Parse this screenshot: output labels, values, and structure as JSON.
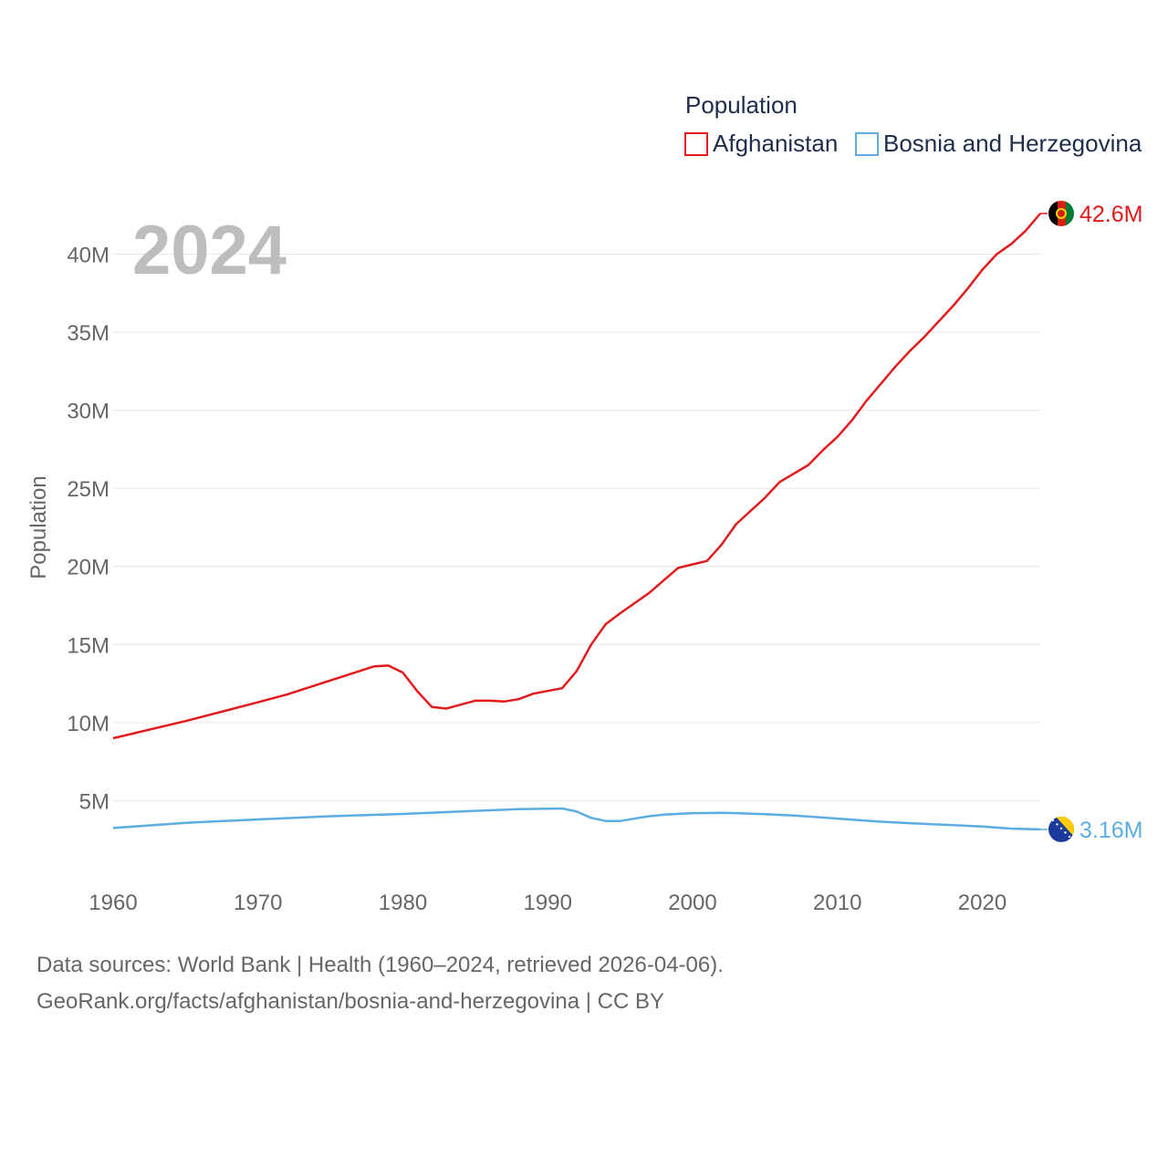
{
  "chart_data": {
    "type": "line",
    "title": "",
    "year_label": "2024",
    "legend_title": "Population",
    "ylabel": "Population",
    "xlabel": "",
    "ylim": [
      0,
      44000000
    ],
    "xlim": [
      1960,
      2024
    ],
    "grid": true,
    "yticks": [
      {
        "value": 5000000,
        "label": "5M"
      },
      {
        "value": 10000000,
        "label": "10M"
      },
      {
        "value": 15000000,
        "label": "15M"
      },
      {
        "value": 20000000,
        "label": "20M"
      },
      {
        "value": 25000000,
        "label": "25M"
      },
      {
        "value": 30000000,
        "label": "30M"
      },
      {
        "value": 35000000,
        "label": "35M"
      },
      {
        "value": 40000000,
        "label": "40M"
      }
    ],
    "xticks": [
      {
        "value": 1960,
        "label": "1960"
      },
      {
        "value": 1970,
        "label": "1970"
      },
      {
        "value": 1980,
        "label": "1980"
      },
      {
        "value": 1990,
        "label": "1990"
      },
      {
        "value": 2000,
        "label": "2000"
      },
      {
        "value": 2010,
        "label": "2010"
      },
      {
        "value": 2020,
        "label": "2020"
      }
    ],
    "series": [
      {
        "name": "Afghanistan",
        "color": "#e31a1c",
        "end_label": "42.6M",
        "flag": "afghanistan-flag-icon",
        "x": [
          1960,
          1965,
          1970,
          1972,
          1975,
          1978,
          1979,
          1980,
          1981,
          1982,
          1983,
          1985,
          1986,
          1987,
          1988,
          1989,
          1991,
          1992,
          1993,
          1994,
          1995,
          1997,
          1999,
          2001,
          2002,
          2003,
          2005,
          2006,
          2008,
          2009,
          2010,
          2011,
          2012,
          2013,
          2014,
          2015,
          2016,
          2017,
          2018,
          2019,
          2020,
          2021,
          2022,
          2023,
          2024
        ],
        "values": [
          9000000,
          10100000,
          11300000,
          11800000,
          12700000,
          13600000,
          13650000,
          13200000,
          12000000,
          11000000,
          10900000,
          11400000,
          11400000,
          11350000,
          11500000,
          11850000,
          12200000,
          13300000,
          15000000,
          16300000,
          17000000,
          18300000,
          19900000,
          20350000,
          21400000,
          22700000,
          24400000,
          25400000,
          26500000,
          27450000,
          28300000,
          29350000,
          30600000,
          31700000,
          32800000,
          33800000,
          34700000,
          35700000,
          36700000,
          37800000,
          39000000,
          40000000,
          40650000,
          41500000,
          42600000
        ]
      },
      {
        "name": "Bosnia and Herzegovina",
        "color": "#5dade2",
        "end_label": "3.16M",
        "flag": "bosnia-flag-icon",
        "x": [
          1960,
          1965,
          1970,
          1975,
          1980,
          1985,
          1988,
          1991,
          1992,
          1993,
          1994,
          1995,
          1997,
          1998,
          2000,
          2002,
          2003,
          2005,
          2007,
          2010,
          2013,
          2015,
          2020,
          2022,
          2024
        ],
        "values": [
          3250000,
          3580000,
          3800000,
          4000000,
          4150000,
          4350000,
          4450000,
          4500000,
          4300000,
          3900000,
          3700000,
          3700000,
          4000000,
          4100000,
          4200000,
          4220000,
          4200000,
          4130000,
          4050000,
          3850000,
          3650000,
          3560000,
          3340000,
          3210000,
          3160000
        ]
      }
    ]
  },
  "footer": {
    "source_line": "Data sources: World Bank | Health (1960–2024, retrieved 2026-04-06).",
    "url_line": "GeoRank.org/facts/afghanistan/bosnia-and-herzegovina | CC BY"
  }
}
